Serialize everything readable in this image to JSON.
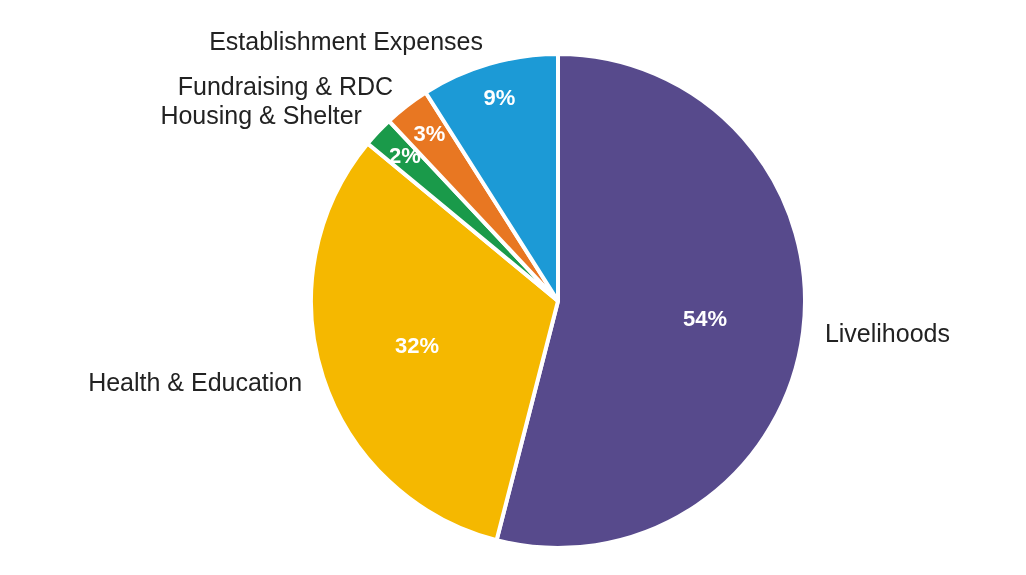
{
  "chart_data": {
    "type": "pie",
    "categories": [
      "Livelihoods",
      "Health & Education",
      "Housing & Shelter",
      "Fundraising & RDC",
      "Establishment Expenses"
    ],
    "values": [
      54,
      32,
      2,
      3,
      9
    ],
    "colors": [
      "#574a8c",
      "#f5b800",
      "#1a9a4a",
      "#e87722",
      "#1c9ad6"
    ],
    "value_labels": [
      "54%",
      "32%",
      "2%",
      "3%",
      "9%"
    ],
    "legend": false
  }
}
